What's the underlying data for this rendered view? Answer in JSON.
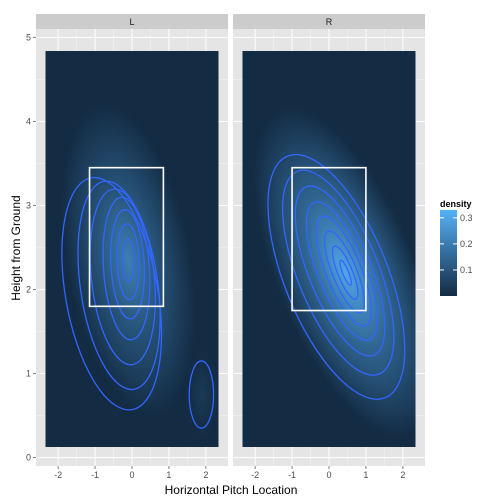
{
  "chart_data": {
    "type": "heatmap",
    "subtype": "2d density with contours",
    "xlabel": "Horizontal Pitch Location",
    "ylabel": "Height from Ground",
    "xlim": [
      -2.6,
      2.6
    ],
    "ylim": [
      -0.1,
      5.1
    ],
    "x_ticks": [
      -2,
      -1,
      0,
      1,
      2
    ],
    "y_ticks": [
      0,
      1,
      2,
      3,
      4,
      5
    ],
    "grid": true,
    "facets": [
      {
        "label": "L",
        "density_peaks": [
          {
            "x": -0.1,
            "y": 2.35,
            "density": 0.22
          },
          {
            "x": 1.9,
            "y": 0.75,
            "density": 0.04
          }
        ],
        "strike_zone": {
          "x0": -1.15,
          "x1": 0.85,
          "y0": 1.8,
          "y1": 3.45
        }
      },
      {
        "label": "R",
        "density_peaks": [
          {
            "x": 0.45,
            "y": 2.2,
            "density": 0.32
          }
        ],
        "strike_zone": {
          "x0": -1.0,
          "x1": 1.0,
          "y0": 1.75,
          "y1": 3.45
        }
      }
    ],
    "legend": {
      "title": "density",
      "placement": "right",
      "ticks": [
        0.1,
        0.2,
        0.3
      ],
      "range": [
        0,
        0.33
      ],
      "colors": [
        "#132b43",
        "#56b1f7"
      ]
    },
    "colors": {
      "panel_background": "#e5e5e5",
      "strip_background": "#cccccc",
      "grid": "#ffffff",
      "contour": "#3366ff",
      "strike_zone": "#ffffff",
      "density_low": "#132b43",
      "density_high": "#56b1f7"
    }
  }
}
